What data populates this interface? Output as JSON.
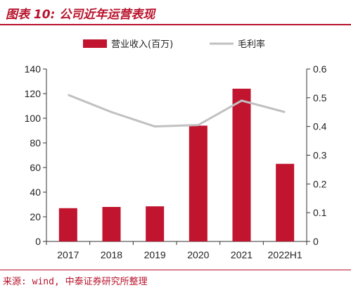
{
  "header": {
    "title": "图表 10: 公司近年运营表现"
  },
  "footer": {
    "source": "来源: wind, 中泰证券研究所整理"
  },
  "colors": {
    "bar": "#c0142f",
    "line": "#c0c0c0",
    "accent": "#b8122b"
  },
  "chart_data": {
    "type": "bar",
    "categories": [
      "2017",
      "2018",
      "2019",
      "2020",
      "2021",
      "2022H1"
    ],
    "series": [
      {
        "name": "营业收入(百万)",
        "type": "bar",
        "axis": "left",
        "values": [
          27,
          28,
          28.5,
          94,
          124,
          63
        ]
      },
      {
        "name": "毛利率",
        "type": "line",
        "axis": "right",
        "values": [
          0.51,
          0.45,
          0.4,
          0.405,
          0.49,
          0.45
        ]
      }
    ],
    "y_left": {
      "ylim": [
        0,
        140
      ],
      "ticks": [
        "0",
        "20",
        "40",
        "60",
        "80",
        "100",
        "120",
        "140"
      ]
    },
    "y_right": {
      "ylim": [
        0,
        0.6
      ],
      "ticks": [
        "0",
        "0.1",
        "0.2",
        "0.3",
        "0.4",
        "0.5",
        "0.6"
      ]
    },
    "legend": "top",
    "grid": false
  }
}
